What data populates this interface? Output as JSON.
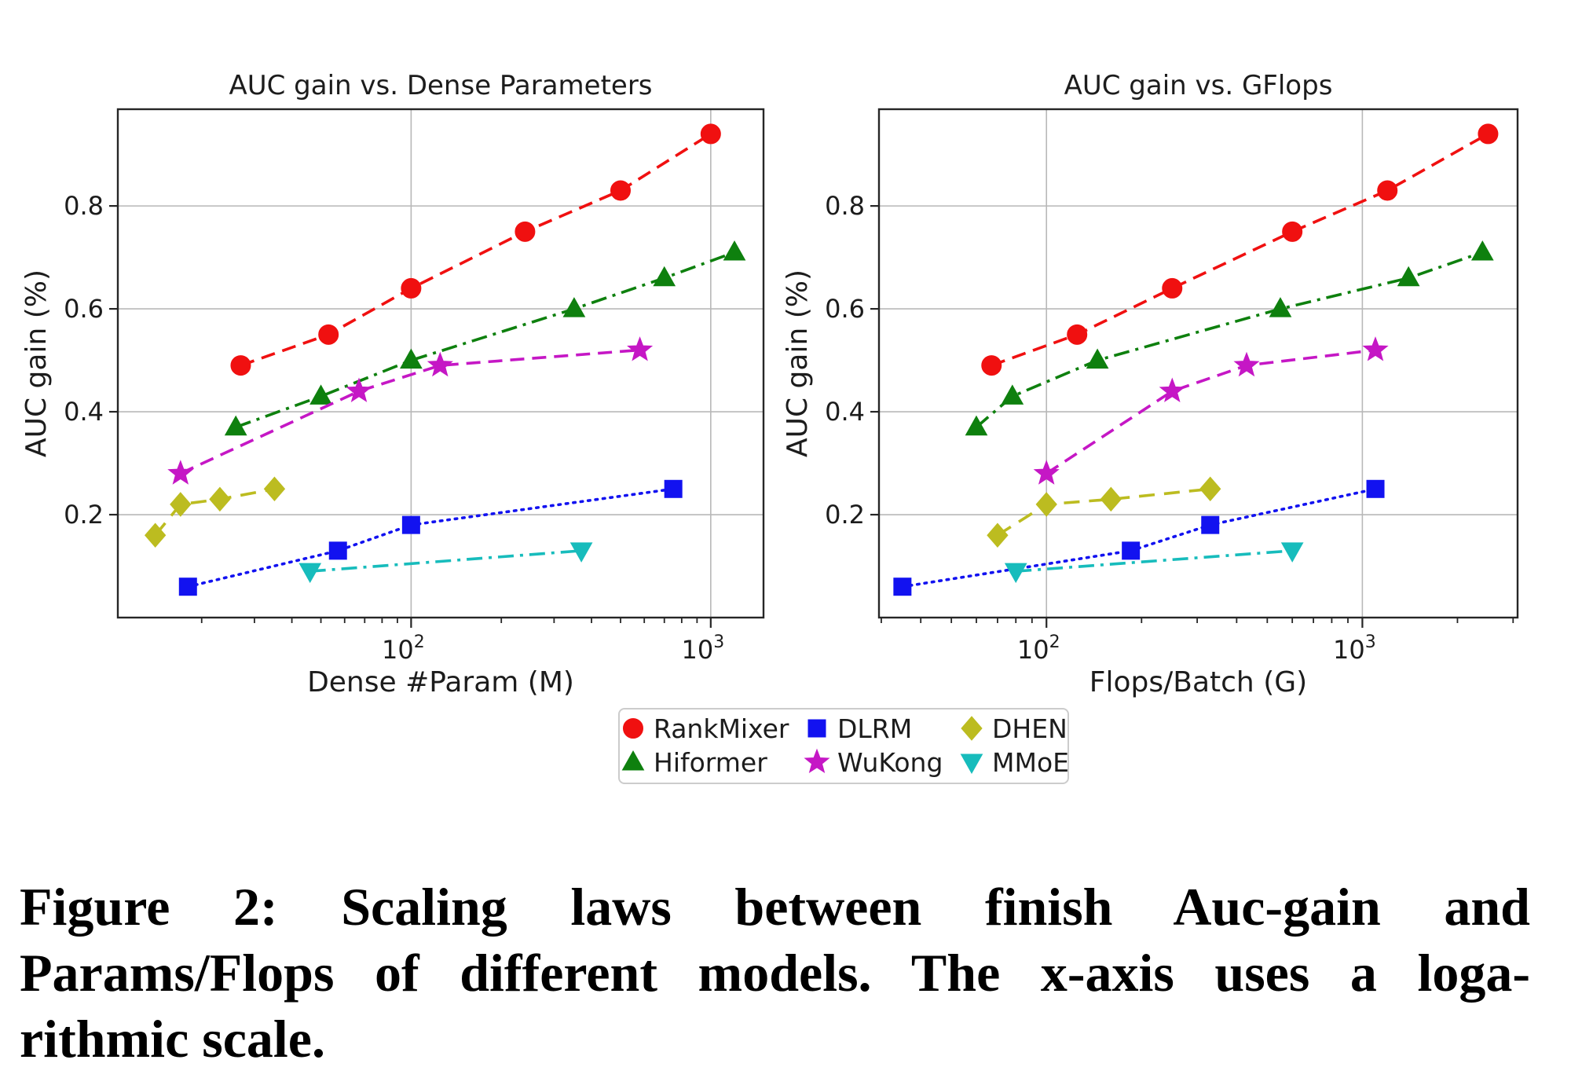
{
  "figure": {
    "caption_lines": [
      "Figure 2: Scaling laws between finish Auc-gain and",
      "Params/Flops of different models. The x-axis uses a loga-",
      "rithmic scale."
    ],
    "legend": {
      "items": [
        "RankMixer",
        "DLRM",
        "DHEN",
        "Hiformer",
        "WuKong",
        "MMoE"
      ]
    },
    "text_color": "#1c1c1c",
    "grid_color": "#b8b8b8",
    "spine_color": "#262626",
    "legend_border_color": "#cccccc"
  },
  "chart_data": [
    {
      "type": "line",
      "title": "AUC gain vs. Dense Parameters",
      "xlabel": "Dense #Param (M)",
      "ylabel": "AUC gain  (%)",
      "xscale": "log",
      "xlim": [
        10.5,
        1500
      ],
      "ylim": [
        0,
        0.988
      ],
      "yticks": [
        {
          "value": 0.2,
          "label": "0.2"
        },
        {
          "value": 0.4,
          "label": "0.4"
        },
        {
          "value": 0.6,
          "label": "0.6"
        },
        {
          "value": 0.8,
          "label": "0.8"
        }
      ],
      "xticks": [
        {
          "value": 100,
          "base": "10",
          "exp": "2"
        },
        {
          "value": 1000,
          "base": "10",
          "exp": "3"
        }
      ],
      "grid": true,
      "series": [
        {
          "name": "RankMixer",
          "color": "#f01010",
          "marker": "circle",
          "linestyle": "dashed",
          "x": [
            27,
            53,
            100,
            240,
            500,
            1000
          ],
          "y": [
            0.49,
            0.55,
            0.64,
            0.75,
            0.83,
            0.94
          ]
        },
        {
          "name": "Hiformer",
          "color": "#0e800e",
          "marker": "triangle-up",
          "linestyle": "dashdot",
          "x": [
            26,
            50,
            100,
            350,
            700,
            1200
          ],
          "y": [
            0.37,
            0.43,
            0.5,
            0.6,
            0.66,
            0.71
          ]
        },
        {
          "name": "WuKong",
          "color": "#c517c5",
          "marker": "star",
          "linestyle": "dashed",
          "x": [
            17,
            67,
            125,
            580
          ],
          "y": [
            0.28,
            0.44,
            0.49,
            0.52
          ]
        },
        {
          "name": "DHEN",
          "color": "#bcbc20",
          "marker": "diamond",
          "linestyle": "dashed2",
          "x": [
            14,
            17,
            23,
            35
          ],
          "y": [
            0.16,
            0.22,
            0.23,
            0.25
          ]
        },
        {
          "name": "DLRM",
          "color": "#1212f0",
          "marker": "square",
          "linestyle": "dotted",
          "x": [
            18,
            57,
            100,
            750
          ],
          "y": [
            0.06,
            0.13,
            0.18,
            0.25
          ]
        },
        {
          "name": "MMoE",
          "color": "#17bcbc",
          "marker": "triangle-down",
          "linestyle": "dashdot",
          "x": [
            46,
            370
          ],
          "y": [
            0.09,
            0.13
          ]
        }
      ]
    },
    {
      "type": "line",
      "title": "AUC gain vs. GFlops",
      "xlabel": "Flops/Batch (G)",
      "ylabel": "AUC gain (%)",
      "xscale": "log",
      "xlim": [
        29.5,
        3100
      ],
      "ylim": [
        0,
        0.988
      ],
      "yticks": [
        {
          "value": 0.2,
          "label": "0.2"
        },
        {
          "value": 0.4,
          "label": "0.4"
        },
        {
          "value": 0.6,
          "label": "0.6"
        },
        {
          "value": 0.8,
          "label": "0.8"
        }
      ],
      "xticks": [
        {
          "value": 100,
          "base": "10",
          "exp": "2"
        },
        {
          "value": 1000,
          "base": "10",
          "exp": "3"
        }
      ],
      "grid": true,
      "series": [
        {
          "name": "RankMixer",
          "color": "#f01010",
          "marker": "circle",
          "linestyle": "dashed",
          "x": [
            67,
            125,
            250,
            600,
            1200,
            2500
          ],
          "y": [
            0.49,
            0.55,
            0.64,
            0.75,
            0.83,
            0.94
          ]
        },
        {
          "name": "Hiformer",
          "color": "#0e800e",
          "marker": "triangle-up",
          "linestyle": "dashdot",
          "x": [
            60,
            78,
            145,
            550,
            1400,
            2400
          ],
          "y": [
            0.37,
            0.43,
            0.5,
            0.6,
            0.66,
            0.71
          ]
        },
        {
          "name": "WuKong",
          "color": "#c517c5",
          "marker": "star",
          "linestyle": "dashed",
          "x": [
            100,
            250,
            430,
            1100
          ],
          "y": [
            0.28,
            0.44,
            0.49,
            0.52
          ]
        },
        {
          "name": "DHEN",
          "color": "#bcbc20",
          "marker": "diamond",
          "linestyle": "dashed2",
          "x": [
            70,
            100,
            160,
            330
          ],
          "y": [
            0.16,
            0.22,
            0.23,
            0.25
          ]
        },
        {
          "name": "DLRM",
          "color": "#1212f0",
          "marker": "square",
          "linestyle": "dotted",
          "x": [
            35,
            185,
            330,
            1100
          ],
          "y": [
            0.06,
            0.13,
            0.18,
            0.25
          ]
        },
        {
          "name": "MMoE",
          "color": "#17bcbc",
          "marker": "triangle-down",
          "linestyle": "dashdot",
          "x": [
            80,
            600
          ],
          "y": [
            0.09,
            0.13
          ]
        }
      ]
    }
  ]
}
